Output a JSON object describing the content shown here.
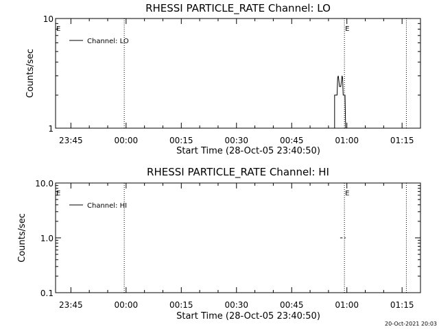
{
  "footer_timestamp": "20-Oct-2021 20:03",
  "chart_data": [
    {
      "type": "line",
      "title": "RHESSI PARTICLE_RATE Channel: LO",
      "xlabel": "Start Time (28-Oct-05 23:40:50)",
      "ylabel": "Counts/sec",
      "y_scale": "log",
      "ylim": [
        1,
        10
      ],
      "y_ticks": [
        1,
        10
      ],
      "y_tick_labels": [
        "1",
        "10"
      ],
      "x_range": [
        "23:40:50",
        "01:20:00"
      ],
      "x_tick_labels": [
        "23:45",
        "00:00",
        "00:15",
        "00:30",
        "00:45",
        "01:00",
        "01:15"
      ],
      "eclipse_marker_label": "E",
      "vertical_dotted_lines": [
        "23:59:30",
        "00:59:20",
        "01:16:10"
      ],
      "eclipse_marks": [
        "23:40:50",
        "00:59:20"
      ],
      "legend": {
        "entry": "Channel: LO",
        "placement": "top-left"
      },
      "series": [
        {
          "name": "Channel: LO",
          "points": [
            [
              "00:56:40",
              1
            ],
            [
              "00:56:40",
              2
            ],
            [
              "00:57:20",
              2
            ],
            [
              "00:57:30",
              2.9
            ],
            [
              "00:57:40",
              3
            ],
            [
              "00:58:00",
              2.4
            ],
            [
              "00:58:20",
              2.4
            ],
            [
              "00:58:40",
              3
            ],
            [
              "00:58:50",
              2.9
            ],
            [
              "00:59:00",
              2
            ],
            [
              "00:59:30",
              2
            ],
            [
              "00:59:40",
              1
            ]
          ]
        }
      ],
      "grid": false
    },
    {
      "type": "line",
      "title": "RHESSI PARTICLE_RATE Channel: HI",
      "xlabel": "Start Time (28-Oct-05 23:40:50)",
      "ylabel": "Counts/sec",
      "y_scale": "log",
      "ylim": [
        0.1,
        10
      ],
      "y_ticks": [
        0.1,
        1,
        10
      ],
      "y_tick_labels": [
        "0.1",
        "1.0",
        "10.0"
      ],
      "x_range": [
        "23:40:50",
        "01:20:00"
      ],
      "x_tick_labels": [
        "23:45",
        "00:00",
        "00:15",
        "00:30",
        "00:45",
        "01:00",
        "01:15"
      ],
      "eclipse_marker_label": "E",
      "vertical_dotted_lines": [
        "23:59:30",
        "00:59:20",
        "01:16:10"
      ],
      "eclipse_marks": [
        "23:40:50",
        "00:59:20"
      ],
      "legend": {
        "entry": "Channel: HI",
        "placement": "top-left"
      },
      "series": [
        {
          "name": "Channel: HI",
          "segments": [
            [
              [
                "00:58:10",
                1
              ],
              [
                "00:58:50",
                1
              ]
            ],
            [
              [
                "00:59:20",
                1
              ],
              [
                "00:59:40",
                1
              ]
            ],
            [
              [
                "01:18:30",
                1
              ],
              [
                "01:19:30",
                1
              ]
            ]
          ]
        }
      ],
      "grid": false
    }
  ]
}
